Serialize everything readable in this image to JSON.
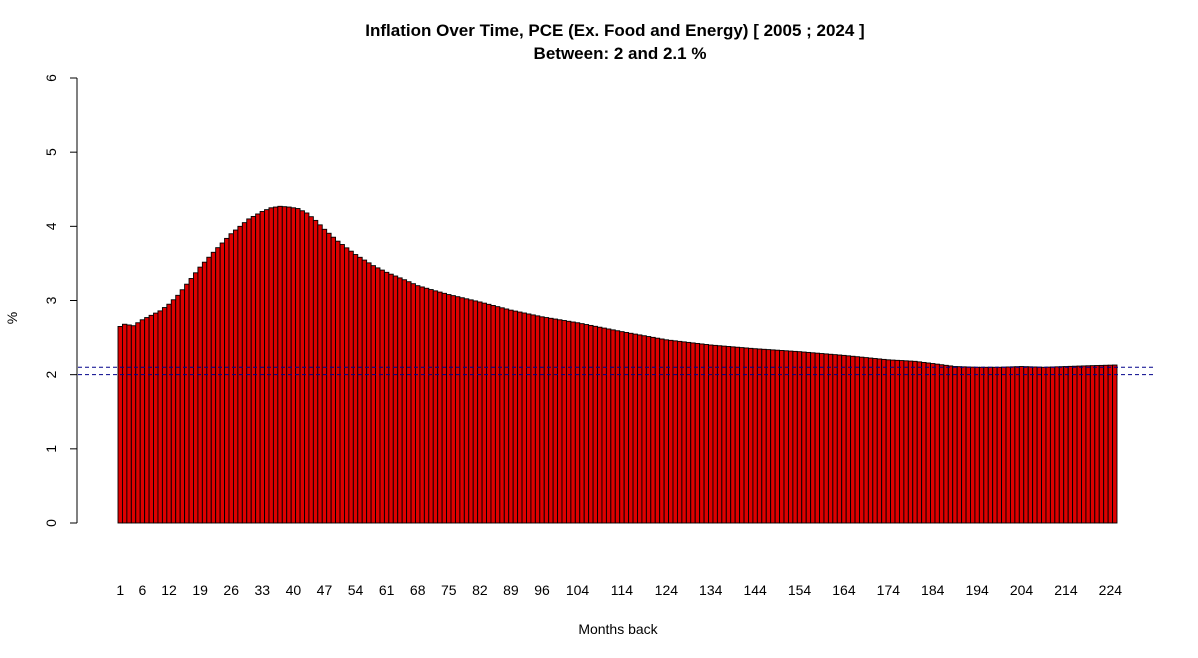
{
  "chart_data": {
    "type": "bar",
    "title": "Inflation Over Time, PCE (Ex. Food and Energy) [ 2005 ;  2024 ]",
    "subtitle": "Between:  2  and  2.1  %",
    "xlabel": "Months back",
    "ylabel": "%",
    "ylim": [
      0,
      6
    ],
    "yticks": [
      "0",
      "1",
      "2",
      "3",
      "4",
      "5",
      "6"
    ],
    "n_bars": 225,
    "xtick_labels": [
      {
        "bar": 1,
        "label": "1"
      },
      {
        "bar": 6,
        "label": "6"
      },
      {
        "bar": 12,
        "label": "12"
      },
      {
        "bar": 19,
        "label": "19"
      },
      {
        "bar": 26,
        "label": "26"
      },
      {
        "bar": 33,
        "label": "33"
      },
      {
        "bar": 40,
        "label": "40"
      },
      {
        "bar": 47,
        "label": "47"
      },
      {
        "bar": 54,
        "label": "54"
      },
      {
        "bar": 61,
        "label": "61"
      },
      {
        "bar": 68,
        "label": "68"
      },
      {
        "bar": 75,
        "label": "75"
      },
      {
        "bar": 82,
        "label": "82"
      },
      {
        "bar": 89,
        "label": "89"
      },
      {
        "bar": 96,
        "label": "96"
      },
      {
        "bar": 104,
        "label": "104"
      },
      {
        "bar": 114,
        "label": "114"
      },
      {
        "bar": 124,
        "label": "124"
      },
      {
        "bar": 134,
        "label": "134"
      },
      {
        "bar": 144,
        "label": "144"
      },
      {
        "bar": 154,
        "label": "154"
      },
      {
        "bar": 164,
        "label": "164"
      },
      {
        "bar": 174,
        "label": "174"
      },
      {
        "bar": 184,
        "label": "184"
      },
      {
        "bar": 194,
        "label": "194"
      },
      {
        "bar": 204,
        "label": "204"
      },
      {
        "bar": 214,
        "label": "214"
      },
      {
        "bar": 224,
        "label": "224"
      }
    ],
    "value_anchors": [
      [
        1,
        2.65
      ],
      [
        2,
        2.68
      ],
      [
        3,
        2.67
      ],
      [
        4,
        2.66
      ],
      [
        5,
        2.7
      ],
      [
        6,
        2.74
      ],
      [
        8,
        2.8
      ],
      [
        10,
        2.86
      ],
      [
        12,
        2.95
      ],
      [
        14,
        3.07
      ],
      [
        16,
        3.22
      ],
      [
        19,
        3.45
      ],
      [
        22,
        3.65
      ],
      [
        26,
        3.9
      ],
      [
        30,
        4.1
      ],
      [
        33,
        4.2
      ],
      [
        35,
        4.25
      ],
      [
        37,
        4.27
      ],
      [
        39,
        4.26
      ],
      [
        41,
        4.24
      ],
      [
        43,
        4.18
      ],
      [
        45,
        4.08
      ],
      [
        47,
        3.96
      ],
      [
        50,
        3.8
      ],
      [
        54,
        3.62
      ],
      [
        58,
        3.47
      ],
      [
        61,
        3.38
      ],
      [
        65,
        3.28
      ],
      [
        68,
        3.2
      ],
      [
        72,
        3.13
      ],
      [
        75,
        3.08
      ],
      [
        82,
        2.98
      ],
      [
        89,
        2.87
      ],
      [
        96,
        2.78
      ],
      [
        104,
        2.7
      ],
      [
        114,
        2.58
      ],
      [
        124,
        2.47
      ],
      [
        134,
        2.4
      ],
      [
        144,
        2.35
      ],
      [
        154,
        2.31
      ],
      [
        164,
        2.26
      ],
      [
        174,
        2.2
      ],
      [
        180,
        2.18
      ],
      [
        184,
        2.15
      ],
      [
        189,
        2.11
      ],
      [
        194,
        2.1
      ],
      [
        199,
        2.1
      ],
      [
        204,
        2.11
      ],
      [
        209,
        2.1
      ],
      [
        214,
        2.11
      ],
      [
        219,
        2.12
      ],
      [
        225,
        2.13
      ]
    ],
    "reference_lines": [
      2,
      2.1
    ],
    "bar_color": "#dd0000",
    "bar_border_color": "#000000",
    "reference_line_color": "#00008b"
  }
}
